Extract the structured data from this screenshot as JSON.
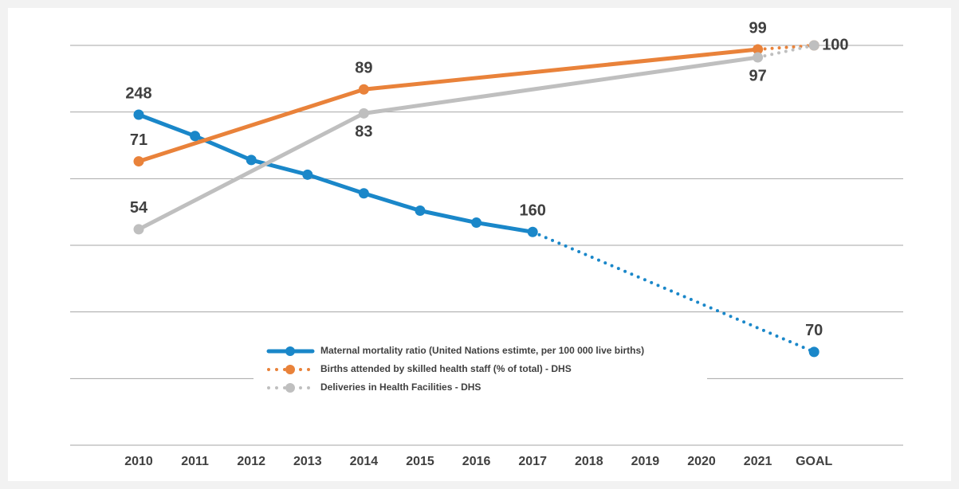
{
  "chart_data": {
    "type": "line",
    "categories": [
      "2010",
      "2011",
      "2012",
      "2013",
      "2014",
      "2015",
      "2016",
      "2017",
      "2018",
      "2019",
      "2020",
      "2021",
      "GOAL"
    ],
    "ylim": [
      0,
      300
    ],
    "yticks": [
      0,
      50,
      100,
      150,
      200,
      250,
      300
    ],
    "y2lim": [
      0,
      100
    ],
    "grid": true,
    "series": [
      {
        "name": "Maternal mortality ratio (United Nations estimte, per 100 000 live births)",
        "color": "#1a87c9",
        "x": [
          "2010",
          "2011",
          "2012",
          "2013",
          "2014",
          "2015",
          "2016",
          "2017",
          "GOAL"
        ],
        "values": [
          248,
          232,
          214,
          203,
          189,
          176,
          167,
          160,
          70
        ],
        "value_labels": [
          "248",
          null,
          null,
          null,
          null,
          null,
          null,
          "160",
          "70"
        ]
      },
      {
        "name": "Births attended by skilled health staff (% of total) - DHS",
        "color": "#e9823a",
        "axis": "y2",
        "x": [
          "2010",
          "2014",
          "2021",
          "GOAL"
        ],
        "values": [
          71,
          89,
          99,
          100
        ],
        "value_labels": [
          "71",
          "89",
          "99",
          null
        ]
      },
      {
        "name": "Deliveries in Health Facilities - DHS",
        "color": "#bfbfbf",
        "axis": "y2",
        "x": [
          "2010",
          "2014",
          "2021",
          "GOAL"
        ],
        "values": [
          54,
          83,
          97,
          100
        ],
        "value_labels": [
          "54",
          "83",
          "97",
          "100"
        ]
      }
    ]
  }
}
